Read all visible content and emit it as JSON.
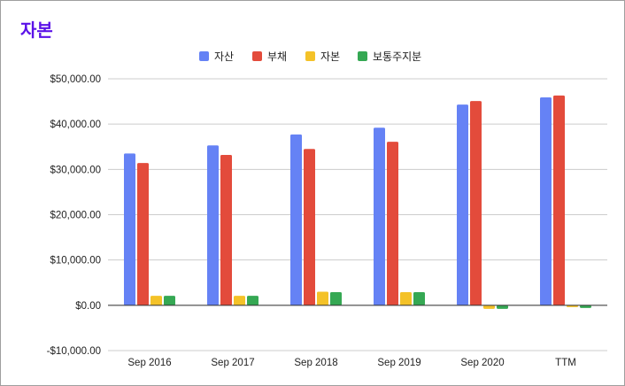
{
  "title": "자본",
  "chart_data": {
    "type": "bar",
    "title": "자본",
    "categories": [
      "Sep 2016",
      "Sep 2017",
      "Sep 2018",
      "Sep 2019",
      "Sep 2020",
      "TTM"
    ],
    "series": [
      {
        "name": "자산",
        "color": "#6582f5",
        "values": [
          33500,
          35300,
          37700,
          39200,
          44300,
          45900
        ]
      },
      {
        "name": "부채",
        "color": "#e34b3b",
        "values": [
          31400,
          33200,
          34500,
          36100,
          45100,
          46300
        ]
      },
      {
        "name": "자본",
        "color": "#f4c228",
        "values": [
          2100,
          2100,
          3000,
          2900,
          -800,
          -400
        ]
      },
      {
        "name": "보통주지분",
        "color": "#35a853",
        "values": [
          2100,
          2100,
          2900,
          2900,
          -800,
          -600
        ]
      }
    ],
    "ylim": [
      -10000,
      50000
    ],
    "yticks": [
      50000,
      40000,
      30000,
      20000,
      10000,
      0,
      -10000
    ],
    "ytick_labels": [
      "$50,000.00",
      "$40,000.00",
      "$30,000.00",
      "$20,000.00",
      "$10,000.00",
      "$0.00",
      "-$10,000.00"
    ],
    "legend_position": "top-center",
    "grid": true
  }
}
